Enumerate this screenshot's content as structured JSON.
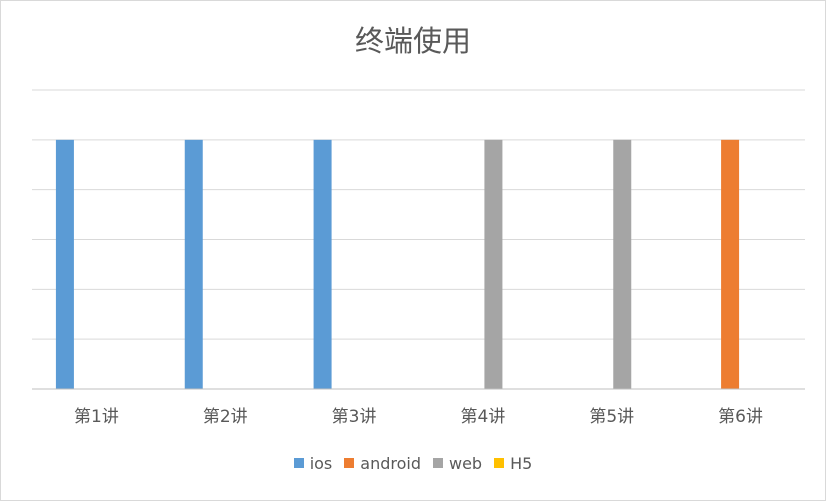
{
  "chart_data": {
    "type": "bar",
    "title": "终端使用",
    "categories": [
      "第1讲",
      "第2讲",
      "第3讲",
      "第4讲",
      "第5讲",
      "第6讲"
    ],
    "series": [
      {
        "name": "ios",
        "color": "#5b9bd5",
        "values": [
          5,
          5,
          5,
          0,
          0,
          0
        ]
      },
      {
        "name": "android",
        "color": "#ed7d31",
        "values": [
          0,
          0,
          0,
          0,
          0,
          5
        ]
      },
      {
        "name": "web",
        "color": "#a5a5a5",
        "values": [
          0,
          0,
          0,
          5,
          5,
          0
        ]
      },
      {
        "name": "H5",
        "color": "#ffc000",
        "values": [
          0,
          0,
          0,
          0,
          0,
          0
        ]
      }
    ],
    "ylim": [
      0,
      6
    ],
    "gridlines": true,
    "legend_position": "bottom"
  }
}
